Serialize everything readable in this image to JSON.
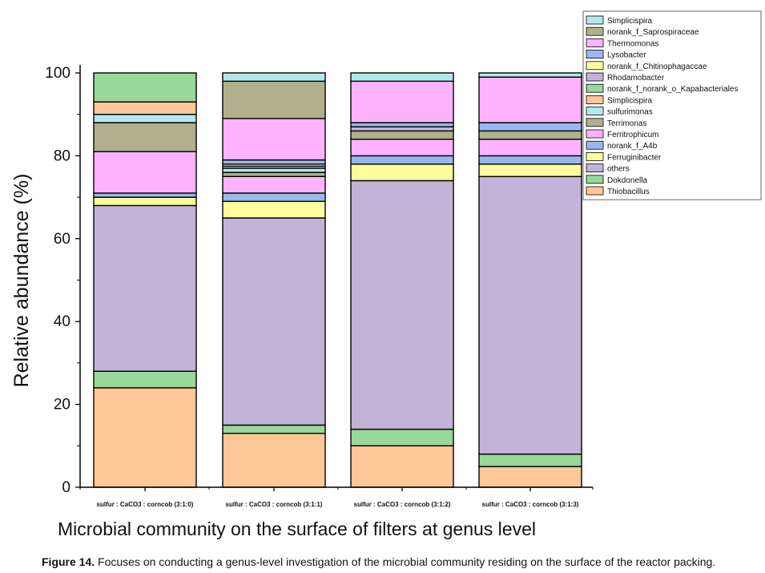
{
  "chart_data": {
    "type": "bar",
    "stacked": true,
    "xlabel": "Microbial community on the surface of filters at genus level",
    "ylabel": "Relative abundance (%)",
    "ylim": [
      0,
      100
    ],
    "yticks": [
      "0",
      "20",
      "40",
      "60",
      "80",
      "100"
    ],
    "legend_placement": "top-right",
    "categories": [
      "sulfur : CaCO3 : corncob (3:1:0)",
      "sulfur : CaCO3 : corncob (3:1:1)",
      "sulfur : CaCO3 : corncob (3:1:2)",
      "sulfur : CaCO3 : corncob (3:1:3)"
    ],
    "series": [
      {
        "name": "Thiobacillus",
        "color": "#ffc896",
        "values": [
          24,
          13,
          10,
          5
        ]
      },
      {
        "name": "Dokdonella",
        "color": "#98d898",
        "values": [
          4,
          2,
          4,
          3
        ]
      },
      {
        "name": "others",
        "color": "#c3b3d8",
        "values": [
          40,
          50,
          60,
          67
        ]
      },
      {
        "name": "Ferruginibacter",
        "color": "#fdfd9e",
        "values": [
          2,
          4,
          4,
          3
        ]
      },
      {
        "name": "norank_f_A4b",
        "color": "#99b8f0",
        "values": [
          1,
          2,
          2,
          2
        ]
      },
      {
        "name": "Ferritrophicum",
        "color": "#ffb3ff",
        "values": [
          10,
          4,
          4,
          4
        ]
      },
      {
        "name": "Terrimonas",
        "color": "#b0b08c",
        "values": [
          7,
          1,
          2,
          2
        ]
      },
      {
        "name": "sulfurimonas",
        "color": "#b3e8ec",
        "values": [
          2,
          1,
          0,
          0
        ]
      },
      {
        "name": "Simplicispira",
        "color": "#ffc896",
        "values": [
          3,
          0,
          0,
          0
        ]
      },
      {
        "name": "norank_f_norank_o_Kapabacteriales",
        "color": "#98d898",
        "values": [
          7,
          0,
          0,
          0
        ]
      },
      {
        "name": "Rhodamobacter",
        "color": "#c3b3d8",
        "values": [
          0,
          0.5,
          1,
          0
        ]
      },
      {
        "name": "norank_f_Chitinophagaccae",
        "color": "#fdfd9e",
        "values": [
          0,
          0.5,
          0,
          0
        ]
      },
      {
        "name": "Lysobacter",
        "color": "#99b8f0",
        "values": [
          0,
          1,
          1,
          2
        ]
      },
      {
        "name": "Thermomonas",
        "color": "#ffb3ff",
        "values": [
          0,
          10,
          10,
          11
        ]
      },
      {
        "name": "norank_f_Saprospiraceae",
        "color": "#b0b08c",
        "values": [
          0,
          9,
          0,
          0
        ]
      },
      {
        "name": "Simplicispira",
        "color": "#b3e8ec",
        "values": [
          0,
          2,
          2,
          1
        ]
      }
    ]
  },
  "caption": {
    "label": "Figure 14.",
    "text": "Focuses on conducting a genus-level investigation of the microbial community residing on the surface of the reactor packing."
  }
}
